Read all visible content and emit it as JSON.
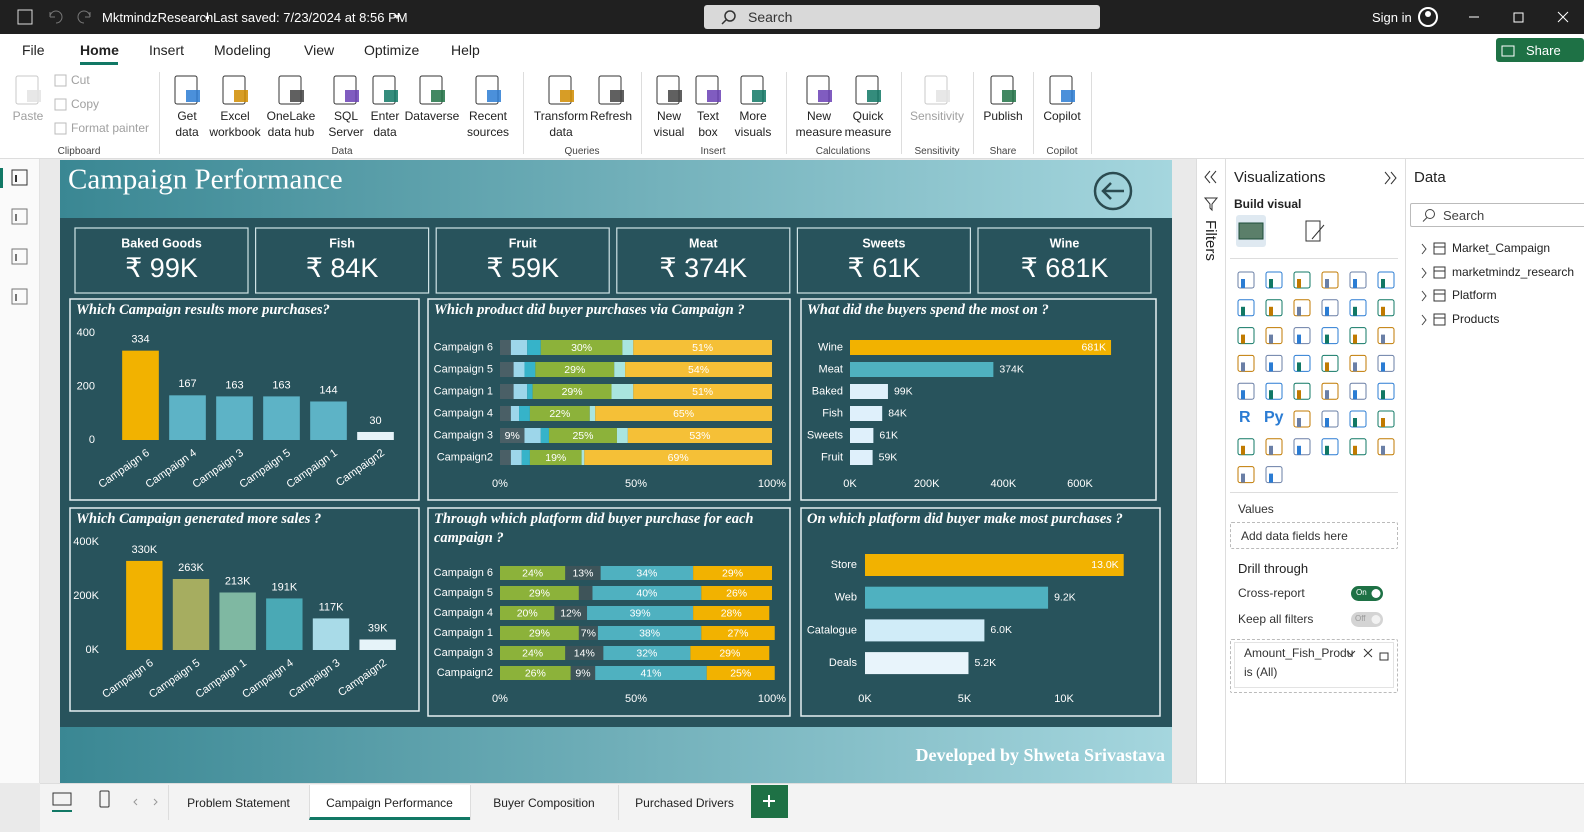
{
  "title_bar": {
    "file_name": "MktmindzResearch",
    "saved": "• Last saved: 7/23/2024 at 8:56 PM",
    "search": "Search",
    "sign_in": "Sign in"
  },
  "menu": {
    "tabs": [
      "File",
      "Home",
      "Insert",
      "Modeling",
      "View",
      "Optimize",
      "Help"
    ],
    "active": 1,
    "share": "Share"
  },
  "ribbon": {
    "groups": [
      {
        "name": "Clipboard",
        "buttons": [
          "Paste",
          "Cut",
          "Copy",
          "Format painter"
        ]
      },
      {
        "name": "Data",
        "buttons": [
          "Get data",
          "Excel workbook",
          "OneLake data hub",
          "SQL Server",
          "Enter data",
          "Dataverse",
          "Recent sources"
        ]
      },
      {
        "name": "Queries",
        "buttons": [
          "Transform data",
          "Refresh"
        ]
      },
      {
        "name": "Insert",
        "buttons": [
          "New visual",
          "Text box",
          "More visuals"
        ]
      },
      {
        "name": "Calculations",
        "buttons": [
          "New measure",
          "Quick measure"
        ]
      },
      {
        "name": "Sensitivity",
        "buttons": [
          "Sensitivity"
        ]
      },
      {
        "name": "Share",
        "buttons": [
          "Publish"
        ]
      },
      {
        "name": "Copilot",
        "buttons": [
          "Copilot"
        ]
      }
    ]
  },
  "report": {
    "title": "Campaign Performance",
    "footer": "Developed by Shweta Srivastava",
    "kpis": [
      {
        "label": "Baked Goods",
        "value": "₹ 99K"
      },
      {
        "label": "Fish",
        "value": "₹ 84K"
      },
      {
        "label": "Fruit",
        "value": "₹ 59K"
      },
      {
        "label": "Meat",
        "value": "₹ 374K"
      },
      {
        "label": "Sweets",
        "value": "₹ 61K"
      },
      {
        "label": "Wine",
        "value": "₹ 681K"
      }
    ],
    "charts": [
      {
        "type": "bar",
        "title": "Which Campaign results more purchases?",
        "categories": [
          "Campaign 6",
          "Campaign 4",
          "Campaign 3",
          "Campaign 5",
          "Campaign 1",
          "Campaign2"
        ],
        "values": [
          334,
          167,
          163,
          163,
          144,
          30
        ],
        "colors": [
          "#f2b200",
          "#5db3c6",
          "#5db3c6",
          "#5db3c6",
          "#5db3c6",
          "#e6f3f9"
        ],
        "ylim": [
          0,
          400
        ],
        "yticks": [
          0,
          200,
          400
        ]
      },
      {
        "type": "stacked_barh",
        "title": "Which product did buyer purchases via Campaign ?",
        "categories": [
          "Campaign 6",
          "Campaign 5",
          "Campaign 1",
          "Campaign 4",
          "Campaign 3",
          "Campaign2"
        ],
        "series": [
          {
            "color": "#4a5f66",
            "values": [
              4,
              5,
              5,
              4,
              9,
              4
            ],
            "value_labels": [
              null,
              null,
              null,
              null,
              "9%",
              null
            ]
          },
          {
            "color": "#9dd6ea",
            "values": [
              6,
              4,
              5,
              3,
              6,
              4
            ]
          },
          {
            "color": "#36b3c9",
            "values": [
              5,
              4,
              2,
              4,
              3,
              3
            ]
          },
          {
            "color": "#8cb23a",
            "values": [
              30,
              29,
              29,
              22,
              25,
              19
            ],
            "value_labels": [
              "30%",
              "29%",
              "29%",
              "22%",
              "25%",
              "19%"
            ]
          },
          {
            "color": "#a9e5df",
            "values": [
              4,
              4,
              8,
              2,
              4,
              1
            ]
          },
          {
            "color": "#f5c037",
            "values": [
              51,
              54,
              51,
              65,
              53,
              69
            ],
            "value_labels": [
              "51%",
              "54%",
              "51%",
              "65%",
              "53%",
              "69%"
            ]
          }
        ],
        "xlim": [
          0,
          100
        ],
        "xticks": [
          {
            "value": 0,
            "label": "0%"
          },
          {
            "value": 50,
            "label": "50%"
          },
          {
            "value": 100,
            "label": "100%"
          }
        ]
      },
      {
        "type": "barh",
        "title": "What did the buyers spend the most on ?",
        "categories": [
          "Wine",
          "Meat",
          "Baked",
          "Fish",
          "Sweets",
          "Fruit"
        ],
        "values": [
          681000,
          374000,
          99000,
          84000,
          61000,
          59000
        ],
        "value_labels": [
          "681K",
          "374K",
          "99K",
          "84K",
          "61K",
          "59K"
        ],
        "colors": [
          "#f2b200",
          "#4fb1c0",
          "#dff0fb",
          "#dff0fb",
          "#dff0fb",
          "#dff0fb"
        ],
        "xlim": [
          0,
          750000
        ],
        "xticks": [
          {
            "value": 0,
            "label": "0K"
          },
          {
            "value": 200000,
            "label": "200K"
          },
          {
            "value": 400000,
            "label": "400K"
          },
          {
            "value": 600000,
            "label": "600K"
          }
        ]
      },
      {
        "type": "bar",
        "title": "Which Campaign generated more sales ?",
        "categories": [
          "Campaign 6",
          "Campaign 5",
          "Campaign 1",
          "Campaign 4",
          "Campaign 3",
          "Campaign2"
        ],
        "values": [
          330000,
          263000,
          213000,
          191000,
          117000,
          39000
        ],
        "value_labels": [
          "330K",
          "263K",
          "213K",
          "191K",
          "117K",
          "39K"
        ],
        "colors": [
          "#f2b200",
          "#a6ad60",
          "#7fb8a2",
          "#4aa9b5",
          "#a9dbe8",
          "#e6f3f9"
        ],
        "ylim": [
          0,
          400000
        ],
        "yticks": [
          {
            "value": 0,
            "label": "0K"
          },
          {
            "value": 200000,
            "label": "200K"
          },
          {
            "value": 400000,
            "label": "400K"
          }
        ]
      },
      {
        "type": "stacked_barh",
        "title": "Through which platform did buyer purchase for each campaign ?",
        "categories": [
          "Campaign 6",
          "Campaign 5",
          "Campaign 4",
          "Campaign 1",
          "Campaign 3",
          "Campaign2"
        ],
        "series": [
          {
            "color": "#8cb23a",
            "values": [
              24,
              29,
              20,
              29,
              24,
              26
            ],
            "value_labels": [
              "24%",
              "29%",
              "20%",
              "29%",
              "24%",
              "26%"
            ]
          },
          {
            "color": "#3e5459",
            "values": [
              13,
              5,
              12,
              7,
              14,
              9
            ],
            "value_labels": [
              "13%",
              null,
              "12%",
              "7%",
              "14%",
              "9%"
            ]
          },
          {
            "color": "#4fb1c0",
            "values": [
              34,
              40,
              39,
              38,
              32,
              41
            ],
            "value_labels": [
              "34%",
              "40%",
              "39%",
              "38%",
              "32%",
              "41%"
            ]
          },
          {
            "color": "#f2b200",
            "values": [
              29,
              26,
              28,
              27,
              29,
              25
            ],
            "value_labels": [
              "29%",
              "26%",
              "28%",
              "27%",
              "29%",
              "25%"
            ]
          }
        ],
        "xlim": [
          0,
          100
        ],
        "xticks": [
          {
            "value": 0,
            "label": "0%"
          },
          {
            "value": 50,
            "label": "50%"
          },
          {
            "value": 100,
            "label": "100%"
          }
        ]
      },
      {
        "type": "barh",
        "title": "On which platform did buyer make most purchases ?",
        "categories": [
          "Store",
          "Web",
          "Catalogue",
          "Deals"
        ],
        "values": [
          13000,
          9200,
          6000,
          5200
        ],
        "value_labels": [
          "13.0K",
          "9.2K",
          "6.0K",
          "5.2K"
        ],
        "colors": [
          "#f2b200",
          "#4fb1c0",
          "#d0ecf8",
          "#e8f4fb"
        ],
        "xlim": [
          0,
          14000
        ],
        "xticks": [
          {
            "value": 0,
            "label": "0K"
          },
          {
            "value": 5000,
            "label": "5K"
          },
          {
            "value": 10000,
            "label": "10K"
          }
        ]
      }
    ]
  },
  "filters_pane": {
    "title": "Filters"
  },
  "visualizations_pane": {
    "title": "Visualizations",
    "build_visual": "Build visual",
    "icon_texts": [
      "R",
      "Py"
    ],
    "values_label": "Values",
    "values_placeholder": "Add data fields here",
    "drill_through": "Drill through",
    "cross_report": "Cross-report",
    "cross_report_state": "On",
    "keep_all_filters": "Keep all filters",
    "keep_all_filters_state": "Off",
    "filter_card": {
      "field": "Amount_Fish_Produ",
      "condition": "is (All)"
    }
  },
  "data_pane": {
    "title": "Data",
    "search": "Search",
    "tables": [
      "Market_Campaign",
      "marketmindz_research",
      "Platform",
      "Products"
    ]
  },
  "page_tabs": {
    "tabs": [
      "Problem Statement",
      "Campaign Performance",
      "Buyer Composition",
      "Purchased Drivers"
    ],
    "active": 1
  }
}
